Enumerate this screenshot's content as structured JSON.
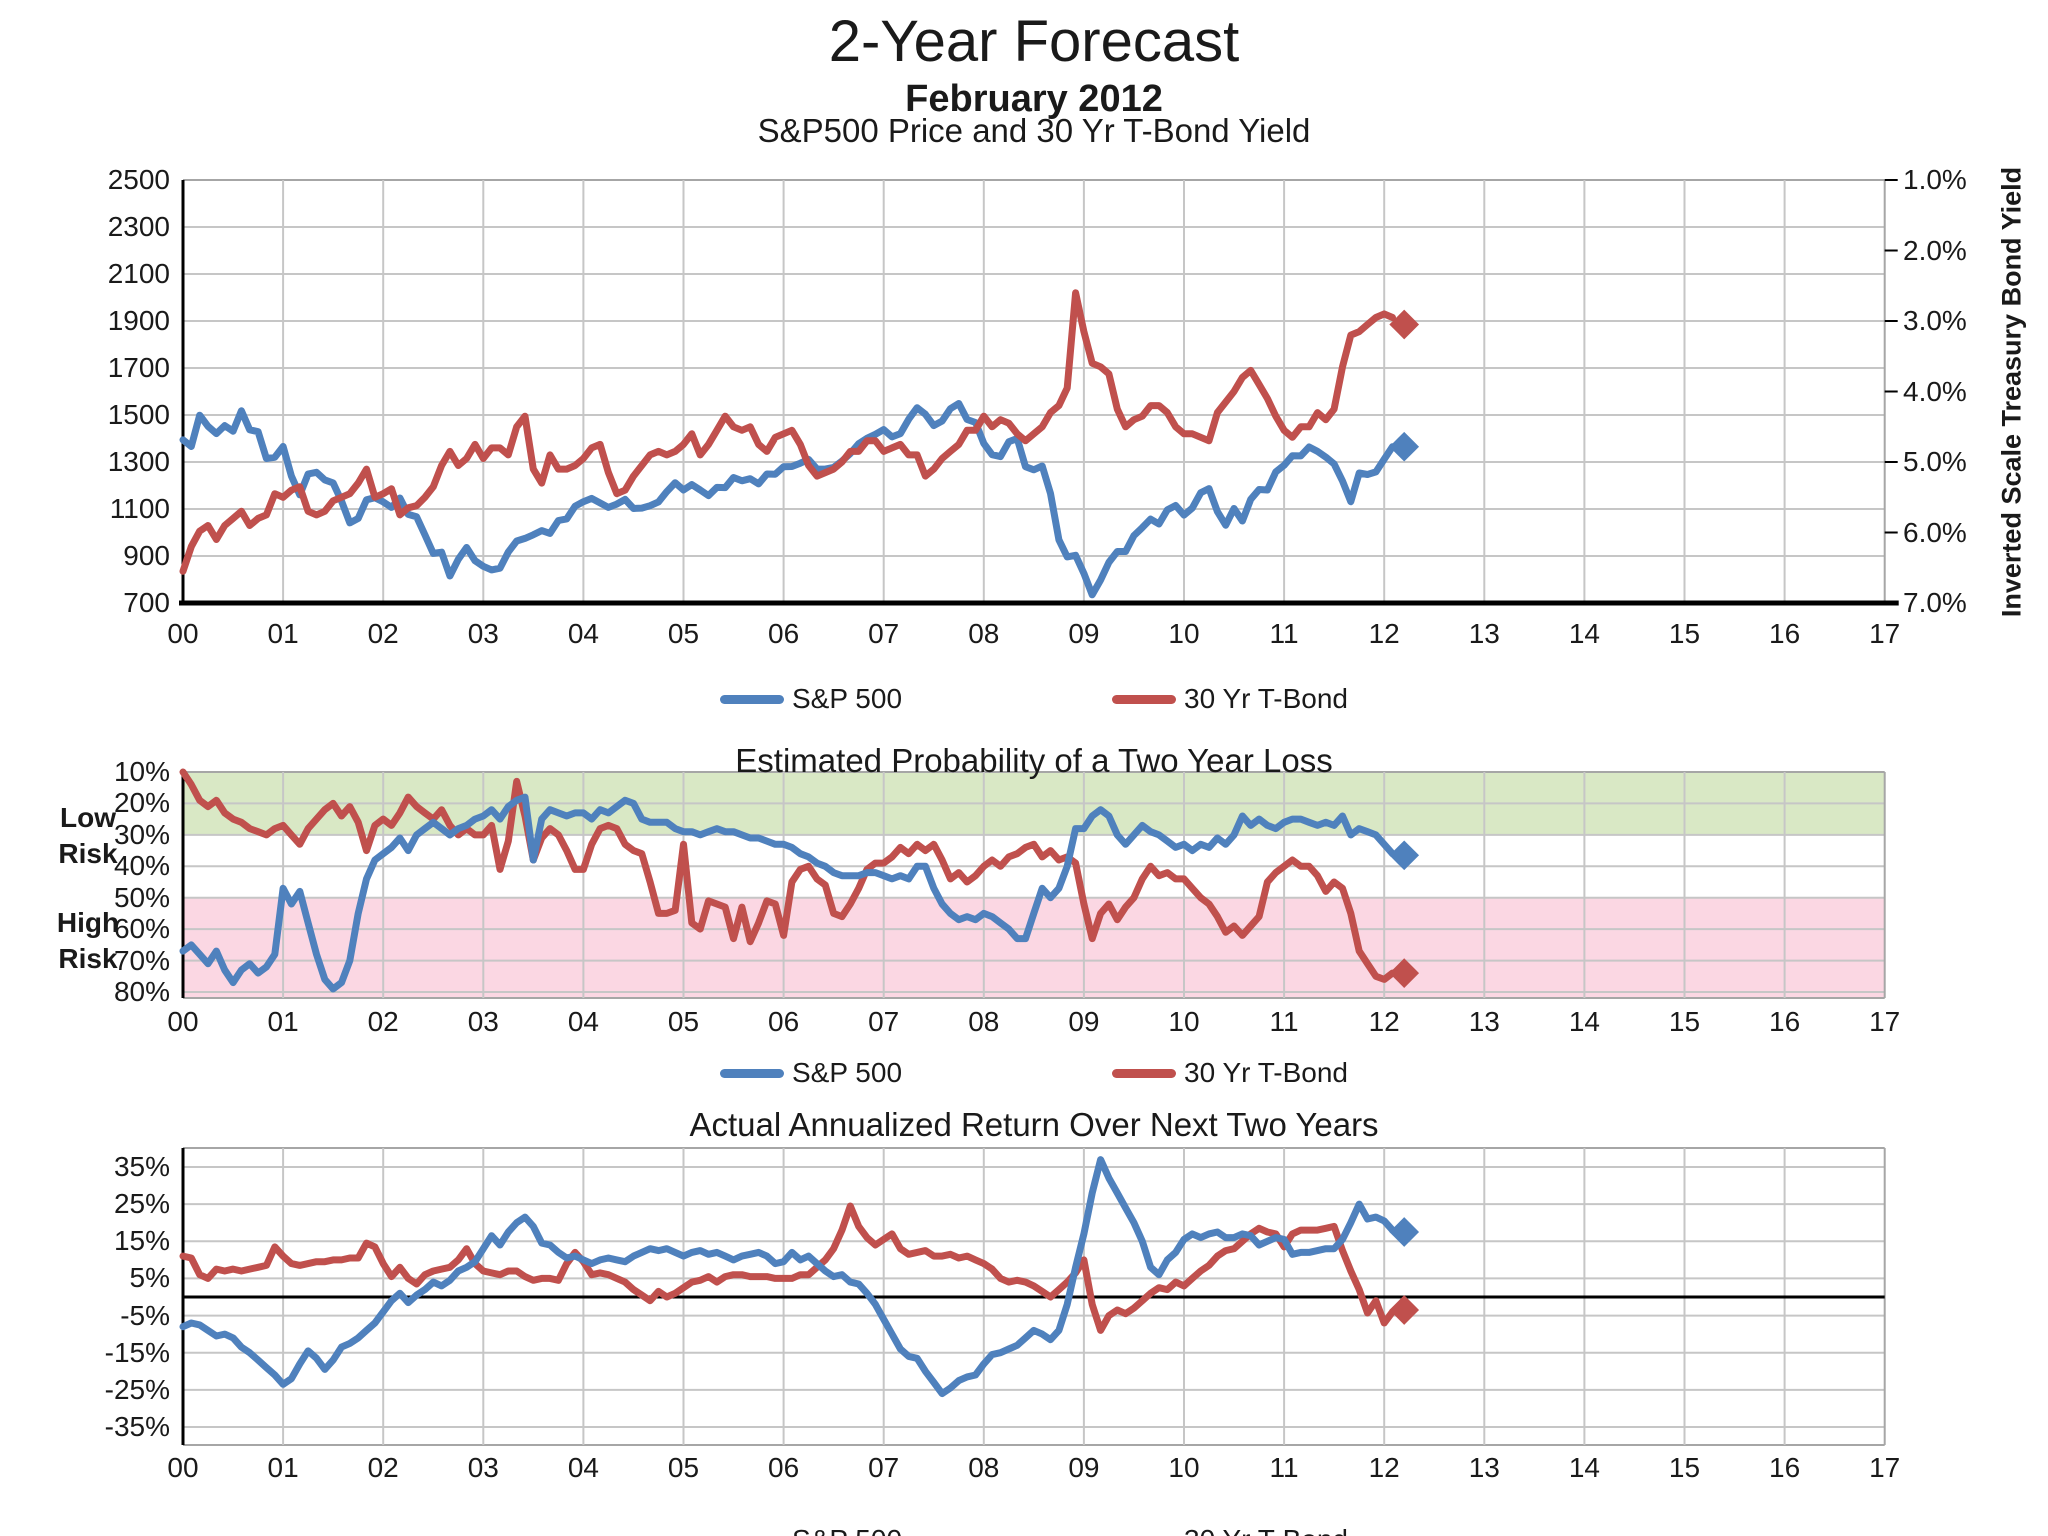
{
  "title": "2-Year Forecast",
  "subtitle": "February 2012",
  "colors": {
    "sp500": "#4F81BD",
    "tbond": "#C0504D",
    "green_band": "#D9E8C5",
    "pink_band": "#FBD7E3",
    "gridline": "#C6C6C6",
    "frame": "#A6A6A6",
    "axis": "#000000"
  },
  "legend_items": [
    {
      "name": "S&P 500",
      "color": "#4F81BD"
    },
    {
      "name": "30 Yr T-Bond",
      "color": "#C0504D"
    }
  ],
  "risk": {
    "low": [
      "Low",
      "Risk"
    ],
    "high": [
      "High",
      "Risk"
    ]
  },
  "x_tick_labels": [
    "00",
    "01",
    "02",
    "03",
    "04",
    "05",
    "06",
    "07",
    "08",
    "09",
    "10",
    "11",
    "12",
    "13",
    "14",
    "15",
    "16",
    "17"
  ],
  "chart_data": [
    {
      "type": "line",
      "title": "S&P500 Price and 30 Yr T-Bond Yield",
      "x_start_year": 2000,
      "x_step_months": 1,
      "x_range_years": [
        0,
        17
      ],
      "left_axis": {
        "ticks": [
          "2500",
          "2300",
          "2100",
          "1900",
          "1700",
          "1500",
          "1300",
          "1100",
          "900",
          "700"
        ],
        "ylim": [
          700,
          2500
        ]
      },
      "right_axis": {
        "label": "Inverted Scale Treasury Bond Yield",
        "ticks": [
          "1.0%",
          "2.0%",
          "3.0%",
          "4.0%",
          "5.0%",
          "6.0%",
          "7.0%"
        ],
        "ylim": [
          1.0,
          7.0
        ],
        "inverted": true
      },
      "series": [
        {
          "name": "S&P 500",
          "axis": "left",
          "values": [
            1394,
            1366,
            1499,
            1452,
            1421,
            1455,
            1431,
            1518,
            1437,
            1429,
            1315,
            1320,
            1366,
            1240,
            1160,
            1249,
            1256,
            1224,
            1211,
            1134,
            1041,
            1060,
            1139,
            1148,
            1130,
            1107,
            1147,
            1077,
            1067,
            990,
            911,
            916,
            815,
            886,
            936,
            880,
            856,
            841,
            848,
            917,
            964,
            975,
            990,
            1008,
            996,
            1051,
            1058,
            1112,
            1131,
            1145,
            1126,
            1107,
            1121,
            1141,
            1102,
            1104,
            1114,
            1130,
            1174,
            1212,
            1181,
            1204,
            1181,
            1157,
            1192,
            1191,
            1234,
            1220,
            1229,
            1207,
            1249,
            1248,
            1280,
            1281,
            1295,
            1311,
            1270,
            1270,
            1277,
            1304,
            1336,
            1378,
            1401,
            1418,
            1438,
            1407,
            1421,
            1482,
            1531,
            1503,
            1455,
            1474,
            1527,
            1549,
            1481,
            1468,
            1379,
            1331,
            1323,
            1386,
            1400,
            1280,
            1267,
            1283,
            1166,
            969,
            896,
            903,
            826,
            735,
            798,
            873,
            919,
            919,
            987,
            1021,
            1057,
            1036,
            1096,
            1115,
            1074,
            1104,
            1169,
            1187,
            1089,
            1031,
            1102,
            1049,
            1141,
            1183,
            1181,
            1258,
            1286,
            1327,
            1326,
            1364,
            1345,
            1321,
            1292,
            1219,
            1131,
            1253,
            1247,
            1258,
            1312,
            1365
          ]
        },
        {
          "name": "30 Yr T-Bond",
          "axis": "right",
          "unit": "yield_percent",
          "values": [
            6.55,
            6.2,
            5.98,
            5.9,
            6.1,
            5.9,
            5.8,
            5.7,
            5.9,
            5.8,
            5.75,
            5.45,
            5.5,
            5.4,
            5.35,
            5.7,
            5.75,
            5.7,
            5.55,
            5.5,
            5.45,
            5.3,
            5.1,
            5.5,
            5.45,
            5.38,
            5.75,
            5.65,
            5.62,
            5.5,
            5.35,
            5.05,
            4.85,
            5.05,
            4.95,
            4.75,
            4.95,
            4.8,
            4.8,
            4.9,
            4.5,
            4.35,
            5.1,
            5.3,
            4.9,
            5.1,
            5.1,
            5.05,
            4.95,
            4.8,
            4.75,
            5.15,
            5.45,
            5.4,
            5.2,
            5.05,
            4.9,
            4.85,
            4.9,
            4.85,
            4.75,
            4.6,
            4.9,
            4.75,
            4.55,
            4.35,
            4.5,
            4.55,
            4.5,
            4.75,
            4.85,
            4.65,
            4.6,
            4.55,
            4.75,
            5.05,
            5.2,
            5.15,
            5.1,
            5.0,
            4.85,
            4.85,
            4.7,
            4.7,
            4.85,
            4.8,
            4.75,
            4.9,
            4.9,
            5.2,
            5.1,
            4.95,
            4.85,
            4.75,
            4.55,
            4.55,
            4.35,
            4.5,
            4.4,
            4.45,
            4.6,
            4.7,
            4.6,
            4.5,
            4.3,
            4.2,
            3.95,
            2.6,
            3.15,
            3.6,
            3.65,
            3.75,
            4.25,
            4.5,
            4.4,
            4.35,
            4.2,
            4.2,
            4.3,
            4.5,
            4.6,
            4.6,
            4.65,
            4.7,
            4.3,
            4.15,
            4.0,
            3.8,
            3.7,
            3.9,
            4.1,
            4.35,
            4.55,
            4.65,
            4.5,
            4.5,
            4.3,
            4.4,
            4.25,
            3.65,
            3.2,
            3.15,
            3.05,
            2.95,
            2.9,
            2.95
          ]
        }
      ],
      "forecast_markers": [
        {
          "series": "S&P 500",
          "x_years": 12.2,
          "value": 1365
        },
        {
          "series": "30 Yr T-Bond",
          "x_years": 12.2,
          "value": 3.05
        }
      ]
    },
    {
      "type": "line",
      "title": "Estimated Probability of a Two Year Loss",
      "x_start_year": 2000,
      "x_step_months": 1,
      "x_range_years": [
        0,
        17
      ],
      "left_axis": {
        "ticks": [
          "10%",
          "20%",
          "30%",
          "40%",
          "50%",
          "60%",
          "70%",
          "80%"
        ],
        "ylim": [
          10,
          80
        ],
        "inverted": true
      },
      "bands": [
        {
          "label": "Low Risk",
          "range_percent": [
            10,
            30
          ],
          "color": "#D9E8C5"
        },
        {
          "label": "High Risk",
          "range_percent": [
            50,
            80
          ],
          "color": "#FBD7E3"
        }
      ],
      "series": [
        {
          "name": "S&P 500",
          "values": [
            67,
            65,
            68,
            71,
            67,
            73,
            77,
            73,
            71,
            74,
            72,
            68,
            47,
            52,
            48,
            58,
            68,
            76,
            79,
            77,
            70,
            55,
            44,
            38,
            36,
            34,
            31,
            35,
            30,
            28,
            26,
            28,
            30,
            28,
            27,
            25,
            24,
            22,
            25,
            21,
            19,
            18,
            38,
            25,
            22,
            23,
            24,
            23,
            23,
            25,
            22,
            23,
            21,
            19,
            20,
            25,
            26,
            26,
            26,
            28,
            29,
            29,
            30,
            29,
            28,
            29,
            29,
            30,
            31,
            31,
            32,
            33,
            33,
            34,
            36,
            37,
            39,
            40,
            42,
            43,
            43,
            43,
            42,
            42,
            43,
            44,
            43,
            44,
            40,
            40,
            47,
            52,
            55,
            57,
            56,
            57,
            55,
            56,
            58,
            60,
            63,
            63,
            55,
            47,
            50,
            47,
            40,
            28,
            28,
            24,
            22,
            24,
            30,
            33,
            30,
            27,
            29,
            30,
            32,
            34,
            33,
            35,
            33,
            34,
            31,
            33,
            30,
            24,
            27,
            25,
            27,
            28,
            26,
            25,
            25,
            26,
            27,
            26,
            27,
            24,
            30,
            28,
            29,
            30,
            33,
            36
          ]
        },
        {
          "name": "30 Yr T-Bond",
          "values": [
            10,
            14,
            19,
            21,
            19,
            23,
            25,
            26,
            28,
            29,
            30,
            28,
            27,
            30,
            33,
            28,
            25,
            22,
            20,
            24,
            21,
            26,
            35,
            27,
            25,
            27,
            23,
            18,
            21,
            23,
            25,
            22,
            27,
            30,
            28,
            30,
            30,
            27,
            41,
            32,
            13,
            24,
            38,
            31,
            28,
            30,
            35,
            41,
            41,
            33,
            28,
            27,
            28,
            33,
            35,
            36,
            45,
            55,
            55,
            54,
            33,
            58,
            60,
            51,
            52,
            53,
            63,
            53,
            64,
            58,
            51,
            52,
            62,
            45,
            41,
            40,
            44,
            46,
            55,
            56,
            52,
            47,
            41,
            39,
            39,
            37,
            34,
            36,
            33,
            35,
            33,
            38,
            44,
            42,
            45,
            43,
            40,
            38,
            40,
            37,
            36,
            34,
            33,
            37,
            35,
            38,
            37,
            39,
            52,
            63,
            55,
            52,
            57,
            53,
            50,
            44,
            40,
            43,
            42,
            44,
            44,
            47,
            50,
            52,
            56,
            61,
            59,
            62,
            59,
            56,
            45,
            42,
            40,
            38,
            40,
            40,
            43,
            48,
            45,
            47,
            55,
            67,
            71,
            75,
            76,
            74
          ]
        }
      ],
      "forecast_markers": [
        {
          "series": "S&P 500",
          "x_years": 12.2,
          "value": 36.5
        },
        {
          "series": "30 Yr T-Bond",
          "x_years": 12.2,
          "value": 74
        }
      ]
    },
    {
      "type": "line",
      "title": "Actual Annualized Return Over Next Two Years",
      "x_start_year": 2000,
      "x_step_months": 1,
      "x_range_years": [
        0,
        17
      ],
      "left_axis": {
        "ticks": [
          "35%",
          "25%",
          "15%",
          "5%",
          "-5%",
          "-15%",
          "-25%",
          "-35%"
        ],
        "ylim": [
          -40,
          40
        ],
        "zero_line": true
      },
      "series": [
        {
          "name": "S&P 500",
          "values": [
            -8,
            -7,
            -7.5,
            -9,
            -10.5,
            -10,
            -11,
            -13.5,
            -15,
            -17,
            -19,
            -21,
            -23.5,
            -22,
            -18,
            -14.5,
            -16.5,
            -19.5,
            -17,
            -13.5,
            -12.5,
            -11,
            -9,
            -7,
            -4,
            -1,
            1,
            -1.5,
            0.5,
            2,
            4,
            3,
            4.5,
            7,
            8,
            9.5,
            13,
            16.5,
            14,
            17.5,
            20,
            21.5,
            19,
            14.5,
            14,
            12,
            10.5,
            11,
            10,
            9,
            10,
            10.5,
            10,
            9.5,
            11,
            12,
            13,
            12.5,
            13,
            12,
            11,
            12,
            12.5,
            11.5,
            12,
            11,
            10,
            11,
            11.5,
            12,
            11,
            9,
            9.5,
            12,
            10,
            11,
            9,
            7,
            5.5,
            6,
            4,
            3.5,
            1,
            -2,
            -6,
            -10,
            -14,
            -16,
            -16.5,
            -20,
            -23,
            -26,
            -24.5,
            -22.5,
            -21.5,
            -21,
            -18,
            -15.5,
            -15,
            -14,
            -13,
            -11,
            -9,
            -10,
            -11.5,
            -9,
            -2,
            8,
            17,
            28,
            37,
            32,
            28,
            24,
            20,
            15,
            8,
            6,
            10,
            12,
            15.5,
            17,
            16,
            17,
            17.5,
            16,
            16,
            17,
            16.5,
            14,
            15,
            16,
            15.5,
            11.5,
            12,
            12,
            12.5,
            13,
            13,
            15.5,
            20,
            25,
            21,
            21.5,
            20.5,
            18
          ]
        },
        {
          "name": "30 Yr T-Bond",
          "values": [
            11,
            10.5,
            6,
            5,
            7.5,
            7,
            7.5,
            7,
            7.5,
            8,
            8.5,
            13.5,
            11,
            9,
            8.5,
            9,
            9.5,
            9.5,
            10,
            10,
            10.5,
            10.5,
            14.5,
            13.5,
            9,
            5.5,
            8,
            5,
            3.5,
            6,
            7,
            7.5,
            8,
            10,
            13,
            9,
            7,
            6.5,
            6,
            7,
            7,
            5.5,
            4.5,
            5,
            5,
            4.5,
            9,
            12,
            9.5,
            6,
            6.5,
            6,
            5,
            4,
            2,
            0.5,
            -1,
            1.5,
            0,
            1,
            2.5,
            4,
            4.5,
            5.5,
            4,
            5.5,
            6,
            6,
            5.5,
            5.5,
            5.5,
            5,
            5,
            5,
            6,
            6,
            8,
            10,
            13,
            18,
            24.5,
            19,
            16,
            14,
            15.5,
            17,
            13,
            11.5,
            12,
            12.5,
            11,
            11,
            11.5,
            10.5,
            11,
            10,
            9,
            7.5,
            5,
            4,
            4.5,
            4,
            3,
            1.5,
            0,
            2,
            4,
            6.5,
            10,
            -2,
            -9,
            -5,
            -3.5,
            -4.5,
            -3,
            -1,
            1,
            2.5,
            2,
            4,
            3,
            5,
            7,
            8.5,
            11,
            12.5,
            13,
            15,
            17,
            18.5,
            17.5,
            17,
            13.5,
            17,
            18,
            18,
            18,
            18.5,
            19,
            12.5,
            7,
            2,
            -4.3,
            -1,
            -7,
            -4
          ]
        }
      ],
      "forecast_markers": [
        {
          "series": "S&P 500",
          "x_years": 12.2,
          "value": 17.5
        },
        {
          "series": "30 Yr T-Bond",
          "x_years": 12.2,
          "value": -3.5
        }
      ]
    }
  ]
}
